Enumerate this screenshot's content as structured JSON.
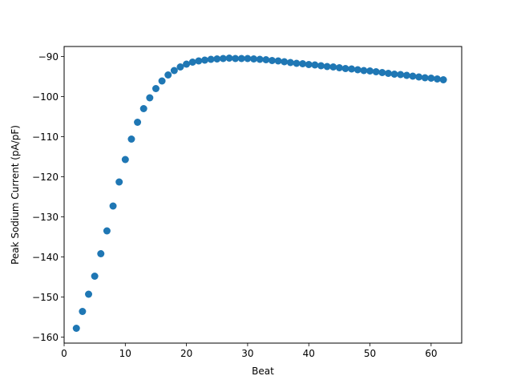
{
  "chart_data": {
    "type": "scatter",
    "title": "",
    "xlabel": "Beat",
    "ylabel": "Peak Sodium Current (pA/pF)",
    "xlim": [
      -0.0,
      65.0
    ],
    "ylim": [
      -161.5,
      -87.5
    ],
    "x_ticks": [
      0,
      10,
      20,
      30,
      40,
      50,
      60
    ],
    "x_tick_labels": [
      "0",
      "10",
      "20",
      "30",
      "40",
      "50",
      "60"
    ],
    "y_ticks": [
      -160,
      -150,
      -140,
      -130,
      -120,
      -110,
      -100,
      -90
    ],
    "y_tick_labels": [
      "−160",
      "−150",
      "−140",
      "−130",
      "−120",
      "−110",
      "−100",
      "−90"
    ],
    "grid": false,
    "marker_color": "#1f77b4",
    "series": [
      {
        "x": [
          2,
          3,
          4,
          5,
          6,
          7,
          8,
          9,
          10,
          11,
          12,
          13,
          14,
          15,
          16,
          17,
          18,
          19,
          20,
          21,
          22,
          23,
          24,
          25,
          26,
          27,
          28,
          29,
          30,
          31,
          32,
          33,
          34,
          35,
          36,
          37,
          38,
          39,
          40,
          41,
          42,
          43,
          44,
          45,
          46,
          47,
          48,
          49,
          50,
          51,
          52,
          53,
          54,
          55,
          56,
          57,
          58,
          59,
          60,
          61,
          62
        ],
        "y": [
          -157.8,
          -153.6,
          -149.3,
          -144.8,
          -139.2,
          -133.5,
          -127.3,
          -121.3,
          -115.7,
          -110.6,
          -106.4,
          -103.0,
          -100.3,
          -98.0,
          -96.1,
          -94.6,
          -93.5,
          -92.6,
          -91.9,
          -91.4,
          -91.1,
          -90.9,
          -90.7,
          -90.6,
          -90.5,
          -90.4,
          -90.5,
          -90.5,
          -90.5,
          -90.6,
          -90.7,
          -90.8,
          -91.0,
          -91.1,
          -91.3,
          -91.5,
          -91.7,
          -91.8,
          -92.0,
          -92.1,
          -92.3,
          -92.5,
          -92.6,
          -92.8,
          -93.0,
          -93.1,
          -93.3,
          -93.5,
          -93.6,
          -93.8,
          -94.0,
          -94.2,
          -94.4,
          -94.5,
          -94.7,
          -94.9,
          -95.1,
          -95.3,
          -95.4,
          -95.6,
          -95.8
        ]
      }
    ]
  }
}
